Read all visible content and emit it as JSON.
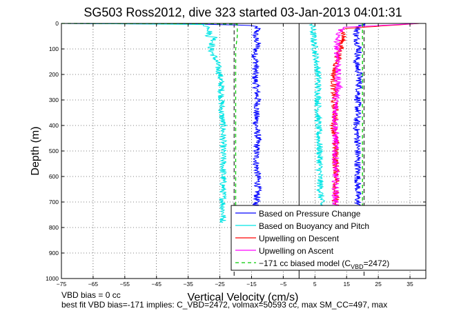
{
  "chart_data": {
    "type": "line",
    "title": "SG503 Ross2012, dive 323 started 03-Jan-2013 04:01:31",
    "xlabel": "Vertical Velocity (cm/s)",
    "ylabel": "Depth (m)",
    "xlim": [
      -75,
      40
    ],
    "ylim": [
      0,
      1000
    ],
    "y_reversed": true,
    "grid": true,
    "x_ticks": [
      -75,
      -65,
      -55,
      -45,
      -35,
      -25,
      -15,
      -5,
      5,
      15,
      25,
      35
    ],
    "x_tick_labels": [
      "−75",
      "−65",
      "−55",
      "−45",
      "−35",
      "−25",
      "−15",
      "−5",
      "5",
      "15",
      "25",
      "35"
    ],
    "y_ticks": [
      0,
      100,
      200,
      300,
      400,
      500,
      600,
      700,
      800,
      900,
      1000
    ],
    "y_tick_labels": [
      "0",
      "100",
      "200",
      "300",
      "400",
      "500",
      "600",
      "700",
      "800",
      "900",
      "1000"
    ],
    "legend_position": "bottom-right",
    "legend": [
      {
        "label": "Based on Pressure Change",
        "color": "#0000ff",
        "dash": false
      },
      {
        "label": "Based on Buoyancy and Pitch",
        "color": "#00e5e5",
        "dash": false
      },
      {
        "label": "Upwelling on Descent",
        "color": "#ff0000",
        "dash": false
      },
      {
        "label": "Upwelling on Ascent",
        "color": "#ff00ff",
        "dash": false
      },
      {
        "label": "−171 cc biased model (C",
        "sub": "VBD",
        "suffix": "=2472)",
        "color": "#00cc00",
        "dash": true
      }
    ],
    "reference_lines": [
      {
        "x": -20.5,
        "color": "#000000",
        "dash": true
      },
      {
        "x": 0,
        "color": "#000000",
        "dash": false
      },
      {
        "x": 20.5,
        "color": "#000000",
        "dash": true
      }
    ],
    "series": [
      {
        "color": "#0000ff",
        "points": [
          [
            -75,
            0
          ],
          [
            -30,
            3
          ],
          [
            -15,
            8
          ],
          [
            -13,
            20
          ],
          [
            -14,
            50
          ],
          [
            -13,
            80
          ],
          [
            -14,
            120
          ],
          [
            -13.5,
            160
          ],
          [
            -14,
            200
          ],
          [
            -13.5,
            250
          ],
          [
            -13,
            300
          ],
          [
            -13.5,
            350
          ],
          [
            -13.5,
            400
          ],
          [
            -13,
            450
          ],
          [
            -13.5,
            500
          ],
          [
            -13.5,
            550
          ],
          [
            -13,
            600
          ],
          [
            -13,
            650
          ],
          [
            -13.5,
            700
          ],
          [
            -13.5,
            720
          ]
        ]
      },
      {
        "color": "#00e5e5",
        "points": [
          [
            -75,
            0
          ],
          [
            -50,
            2
          ],
          [
            -30,
            4
          ],
          [
            -28,
            20
          ],
          [
            -28.5,
            50
          ],
          [
            -26.5,
            55
          ],
          [
            -27,
            70
          ],
          [
            -28,
            100
          ],
          [
            -26,
            150
          ],
          [
            -25,
            200
          ],
          [
            -24.5,
            250
          ],
          [
            -24.5,
            300
          ],
          [
            -24.5,
            350
          ],
          [
            -24,
            400
          ],
          [
            -24,
            450
          ],
          [
            -24,
            500
          ],
          [
            -24,
            550
          ],
          [
            -24,
            600
          ],
          [
            -24,
            650
          ],
          [
            -24,
            700
          ],
          [
            -24,
            760
          ],
          [
            -24,
            780
          ]
        ]
      },
      {
        "color": "#0000ff",
        "points": [
          [
            21,
            0
          ],
          [
            18.5,
            15
          ],
          [
            18,
            50
          ],
          [
            19,
            100
          ],
          [
            18,
            150
          ],
          [
            19,
            200
          ],
          [
            19,
            250
          ],
          [
            18.5,
            300
          ],
          [
            18.5,
            350
          ],
          [
            18,
            400
          ],
          [
            18.5,
            450
          ],
          [
            18.5,
            500
          ],
          [
            18.5,
            550
          ],
          [
            18.5,
            600
          ],
          [
            18.5,
            650
          ],
          [
            18.5,
            700
          ],
          [
            18.5,
            720
          ]
        ]
      },
      {
        "color": "#00e5e5",
        "points": [
          [
            4,
            0
          ],
          [
            4.5,
            50
          ],
          [
            5,
            100
          ],
          [
            5.5,
            150
          ],
          [
            6,
            200
          ],
          [
            6,
            300
          ],
          [
            6,
            400
          ],
          [
            6.5,
            500
          ],
          [
            6.5,
            600
          ],
          [
            7,
            700
          ],
          [
            7,
            720
          ]
        ]
      },
      {
        "color": "#ff0000",
        "points": [
          [
            38,
            0
          ],
          [
            14,
            20
          ],
          [
            14,
            50
          ],
          [
            13,
            100
          ],
          [
            12,
            150
          ],
          [
            11,
            200
          ],
          [
            11,
            250
          ],
          [
            11,
            300
          ],
          [
            11.5,
            350
          ],
          [
            11,
            400
          ],
          [
            11.5,
            450
          ],
          [
            11.5,
            500
          ],
          [
            11.5,
            550
          ],
          [
            12,
            600
          ],
          [
            11.5,
            650
          ],
          [
            11.5,
            700
          ],
          [
            11.5,
            720
          ]
        ]
      },
      {
        "color": "#ff00ff",
        "points": [
          [
            38,
            0
          ],
          [
            14,
            15
          ],
          [
            12,
            50
          ],
          [
            12,
            100
          ],
          [
            12.5,
            150
          ],
          [
            12,
            200
          ],
          [
            12.5,
            250
          ],
          [
            11.5,
            300
          ],
          [
            11.5,
            350
          ],
          [
            11.5,
            400
          ],
          [
            11.5,
            450
          ],
          [
            11.5,
            500
          ],
          [
            11.5,
            550
          ],
          [
            11.5,
            600
          ],
          [
            11.5,
            650
          ],
          [
            11.5,
            700
          ],
          [
            11.5,
            720
          ]
        ]
      },
      {
        "color": "#00cc00",
        "dash": true,
        "points": [
          [
            -75,
            0
          ],
          [
            -30,
            1
          ],
          [
            -19.5,
            3
          ],
          [
            -19.5,
            50
          ],
          [
            -20,
            100
          ],
          [
            -20,
            200
          ],
          [
            -20,
            300
          ],
          [
            -20,
            400
          ],
          [
            -20,
            500
          ],
          [
            -20,
            600
          ],
          [
            -20,
            700
          ],
          [
            -20,
            760
          ]
        ]
      },
      {
        "color": "#00cc00",
        "dash": true,
        "points": [
          [
            20,
            0
          ],
          [
            20,
            100
          ],
          [
            20,
            200
          ],
          [
            20,
            300
          ],
          [
            20,
            400
          ],
          [
            20,
            500
          ],
          [
            20,
            600
          ],
          [
            20,
            700
          ],
          [
            20,
            760
          ]
        ]
      }
    ]
  },
  "footer": {
    "line1": "VBD bias = 0 cc",
    "line2": "best fit VBD bias=-171 implies: C_VBD=2472, volmax=50593 cc, max SM_CC=497, max"
  }
}
